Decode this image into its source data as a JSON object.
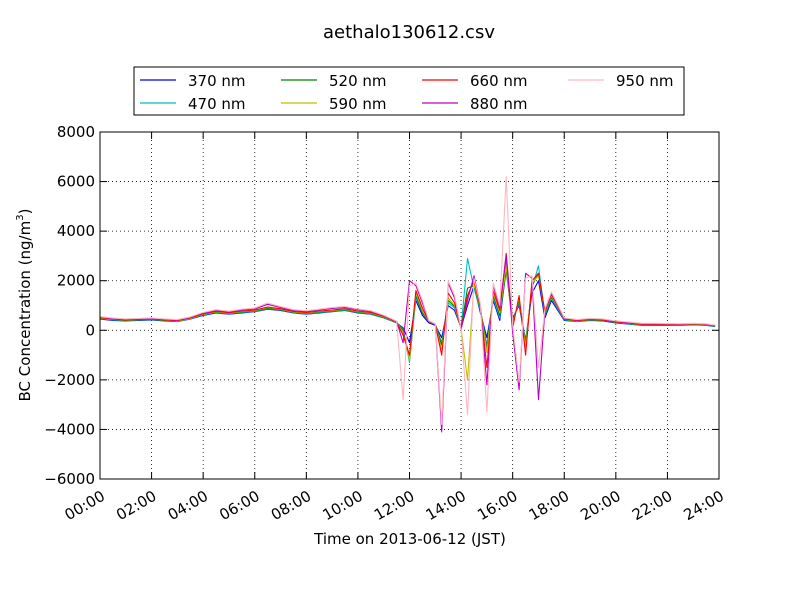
{
  "chart_data": {
    "type": "line",
    "title": "aethalo130612.csv",
    "xlabel": "Time on 2013-06-12 (JST)",
    "ylabel": "BC Concentration (ng/m",
    "ylabel_sup": "3",
    "ylabel_close": ")",
    "xlim": [
      0,
      24
    ],
    "ylim": [
      -6000,
      8000
    ],
    "grid": true,
    "legend_position": "top",
    "x_ticks": [
      {
        "v": 0,
        "label": "00:00"
      },
      {
        "v": 2,
        "label": "02:00"
      },
      {
        "v": 4,
        "label": "04:00"
      },
      {
        "v": 6,
        "label": "06:00"
      },
      {
        "v": 8,
        "label": "08:00"
      },
      {
        "v": 10,
        "label": "10:00"
      },
      {
        "v": 12,
        "label": "12:00"
      },
      {
        "v": 14,
        "label": "14:00"
      },
      {
        "v": 16,
        "label": "16:00"
      },
      {
        "v": 18,
        "label": "18:00"
      },
      {
        "v": 20,
        "label": "20:00"
      },
      {
        "v": 22,
        "label": "22:00"
      },
      {
        "v": 24,
        "label": "24:00"
      }
    ],
    "y_ticks": [
      {
        "v": 8000,
        "label": "8000"
      },
      {
        "v": 6000,
        "label": "6000"
      },
      {
        "v": 4000,
        "label": "4000"
      },
      {
        "v": 2000,
        "label": "2000"
      },
      {
        "v": 0,
        "label": "0"
      },
      {
        "v": -2000,
        "label": "−2000"
      },
      {
        "v": -4000,
        "label": "−4000"
      },
      {
        "v": -6000,
        "label": "−6000"
      }
    ],
    "x_hours": [
      0,
      0.5,
      1,
      1.5,
      2,
      2.5,
      3,
      3.5,
      4,
      4.5,
      5,
      5.5,
      6,
      6.5,
      7,
      7.5,
      8,
      8.5,
      9,
      9.5,
      10,
      10.5,
      11,
      11.5,
      11.75,
      12,
      12.25,
      12.5,
      12.75,
      13,
      13.25,
      13.5,
      13.75,
      14,
      14.25,
      14.5,
      14.75,
      15,
      15.25,
      15.5,
      15.75,
      16,
      16.25,
      16.5,
      16.75,
      17,
      17.25,
      17.5,
      18,
      18.5,
      19,
      19.5,
      20,
      20.5,
      21,
      21.5,
      22,
      22.5,
      23,
      23.5,
      23.85
    ],
    "series": [
      {
        "name": "370 nm",
        "color": "#0000ff",
        "values": [
          450,
          400,
          380,
          400,
          420,
          380,
          350,
          450,
          600,
          700,
          650,
          700,
          750,
          850,
          800,
          700,
          650,
          700,
          750,
          800,
          700,
          650,
          500,
          300,
          100,
          -500,
          1200,
          600,
          300,
          200,
          -300,
          1000,
          800,
          100,
          1000,
          1800,
          700,
          -300,
          1200,
          400,
          2500,
          500,
          1000,
          -400,
          1500,
          2000,
          500,
          1200,
          400,
          350,
          400,
          380,
          300,
          250,
          200,
          200,
          200,
          200,
          220,
          200,
          150
        ]
      },
      {
        "name": "470 nm",
        "color": "#00bfbf",
        "values": [
          470,
          420,
          390,
          410,
          430,
          390,
          360,
          460,
          620,
          720,
          660,
          720,
          760,
          870,
          820,
          710,
          660,
          720,
          760,
          810,
          720,
          660,
          500,
          310,
          50,
          -1300,
          1300,
          700,
          350,
          250,
          -500,
          1100,
          900,
          100,
          2900,
          1700,
          800,
          -600,
          1300,
          500,
          2800,
          400,
          1100,
          -500,
          1700,
          2600,
          600,
          1300,
          420,
          360,
          410,
          390,
          310,
          260,
          210,
          210,
          210,
          210,
          230,
          210,
          160
        ]
      },
      {
        "name": "520 nm",
        "color": "#008000",
        "values": [
          490,
          430,
          400,
          420,
          440,
          400,
          370,
          470,
          630,
          730,
          670,
          740,
          780,
          890,
          830,
          720,
          680,
          740,
          780,
          830,
          740,
          680,
          520,
          320,
          0,
          -1100,
          1400,
          700,
          350,
          230,
          -600,
          1200,
          950,
          80,
          1700,
          1800,
          850,
          -700,
          1400,
          600,
          2400,
          300,
          1200,
          -600,
          1800,
          2300,
          650,
          1350,
          440,
          370,
          420,
          400,
          320,
          270,
          220,
          220,
          220,
          210,
          240,
          220,
          170
        ]
      },
      {
        "name": "590 nm",
        "color": "#bfbf00",
        "values": [
          500,
          440,
          410,
          430,
          450,
          410,
          380,
          480,
          640,
          750,
          690,
          760,
          800,
          920,
          850,
          740,
          700,
          760,
          800,
          850,
          760,
          700,
          540,
          330,
          -100,
          -1200,
          1500,
          800,
          360,
          230,
          -800,
          1300,
          1000,
          60,
          -2000,
          1900,
          900,
          -900,
          1500,
          700,
          2600,
          200,
          1300,
          -700,
          1900,
          2200,
          700,
          1400,
          450,
          380,
          430,
          410,
          330,
          280,
          230,
          230,
          230,
          220,
          250,
          230,
          180
        ]
      },
      {
        "name": "660 nm",
        "color": "#ff0000",
        "values": [
          510,
          450,
          420,
          440,
          460,
          420,
          390,
          500,
          660,
          770,
          710,
          780,
          820,
          940,
          870,
          760,
          720,
          780,
          820,
          870,
          780,
          720,
          560,
          340,
          -200,
          -1000,
          1600,
          900,
          370,
          240,
          -1000,
          1500,
          1100,
          50,
          1400,
          2000,
          950,
          -1500,
          1600,
          800,
          3100,
          100,
          1400,
          -1000,
          2000,
          2300,
          750,
          1450,
          460,
          390,
          440,
          420,
          340,
          290,
          240,
          240,
          240,
          230,
          260,
          240,
          190
        ]
      },
      {
        "name": "880 nm",
        "color": "#bf00bf",
        "values": [
          530,
          470,
          440,
          460,
          480,
          440,
          410,
          520,
          690,
          800,
          740,
          820,
          860,
          1050,
          920,
          800,
          760,
          820,
          880,
          920,
          830,
          760,
          590,
          360,
          -500,
          2000,
          1800,
          1100,
          380,
          250,
          -4100,
          1900,
          1300,
          40,
          1200,
          2200,
          1000,
          -2200,
          1800,
          900,
          3000,
          -100,
          -2400,
          2300,
          2100,
          -2800,
          800,
          1500,
          480,
          410,
          460,
          440,
          360,
          310,
          260,
          260,
          260,
          250,
          270,
          250,
          200
        ]
      },
      {
        "name": "950 nm",
        "color": "#ffb6c1",
        "values": [
          550,
          490,
          460,
          480,
          500,
          460,
          430,
          540,
          720,
          830,
          770,
          850,
          900,
          1100,
          960,
          830,
          790,
          850,
          920,
          960,
          860,
          790,
          610,
          370,
          -2800,
          1800,
          1900,
          1200,
          390,
          260,
          -3800,
          2000,
          1400,
          30,
          -3400,
          2100,
          1050,
          -3300,
          1900,
          1000,
          6200,
          200,
          -2100,
          2100,
          2200,
          -1500,
          850,
          1550,
          500,
          430,
          480,
          460,
          380,
          330,
          280,
          280,
          270,
          260,
          280,
          260,
          210
        ]
      }
    ]
  }
}
